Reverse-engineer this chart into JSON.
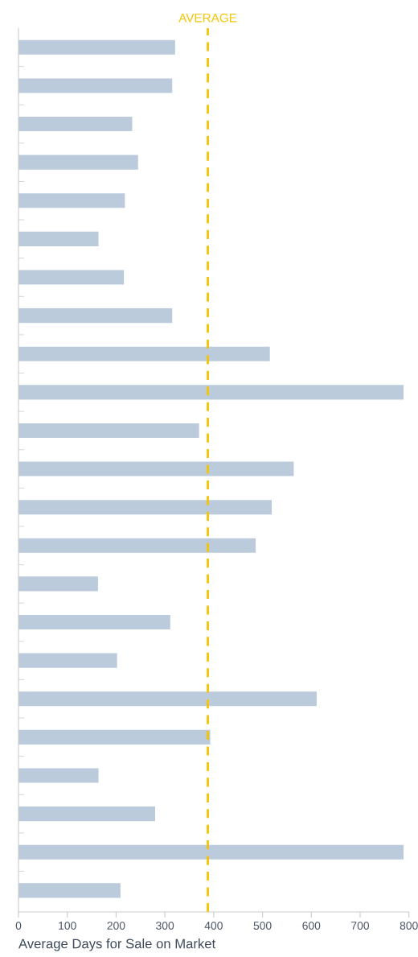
{
  "chart_data": {
    "type": "bar",
    "orientation": "horizontal",
    "xlabel": "Average Days for Sale on Market",
    "categories": [
      null,
      null,
      null,
      null,
      null,
      null,
      null,
      null,
      null,
      null,
      null,
      null,
      null,
      null,
      null,
      null,
      null,
      null,
      null,
      null,
      null,
      null,
      null
    ],
    "values": [
      321,
      315,
      233,
      245,
      218,
      164,
      216,
      315,
      515,
      789,
      370,
      564,
      519,
      486,
      163,
      311,
      202,
      611,
      393,
      164,
      280,
      789,
      209
    ],
    "color": "#bccbdc",
    "xlim": [
      0,
      800
    ],
    "xticks": [
      0,
      100,
      200,
      300,
      400,
      500,
      600,
      700,
      800
    ],
    "grid": false,
    "ref_lines": [
      {
        "axis": "x",
        "value": 388,
        "label": "AVERAGE",
        "color": "#f5c400",
        "line_style": "dashed"
      }
    ]
  }
}
